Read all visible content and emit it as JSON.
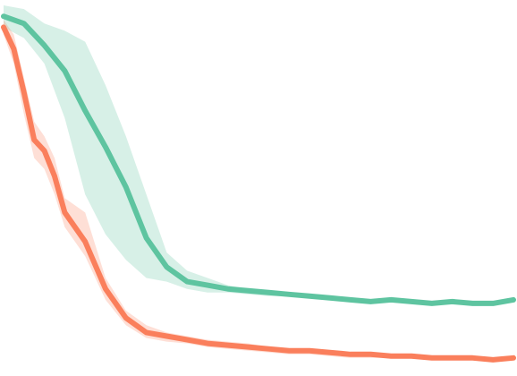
{
  "chart_data": {
    "type": "line",
    "title": "",
    "xlabel": "",
    "ylabel": "",
    "grid": false,
    "legend": "none",
    "xlim": [
      0,
      100
    ],
    "ylim": [
      0,
      1
    ],
    "series": [
      {
        "color": "#5ec4a0",
        "band_color": "#5ec4a0",
        "band_opacity": 0.25,
        "x": [
          0,
          4,
          8,
          12,
          16,
          20,
          24,
          28,
          32,
          36,
          40,
          44,
          48,
          52,
          56,
          60,
          64,
          68,
          72,
          76,
          80,
          84,
          88,
          92,
          96,
          100
        ],
        "y": [
          0.97,
          0.95,
          0.89,
          0.82,
          0.71,
          0.61,
          0.5,
          0.36,
          0.28,
          0.24,
          0.23,
          0.22,
          0.215,
          0.21,
          0.205,
          0.2,
          0.195,
          0.19,
          0.185,
          0.19,
          0.185,
          0.18,
          0.185,
          0.18,
          0.18,
          0.19
        ],
        "upper": [
          1.0,
          0.99,
          0.95,
          0.93,
          0.9,
          0.78,
          0.64,
          0.48,
          0.32,
          0.27,
          0.25,
          0.23,
          0.22,
          0.215,
          0.21,
          0.205,
          0.2,
          0.195,
          0.19,
          0.195,
          0.19,
          0.185,
          0.19,
          0.185,
          0.185,
          0.195
        ],
        "lower": [
          0.94,
          0.91,
          0.84,
          0.69,
          0.48,
          0.37,
          0.3,
          0.25,
          0.24,
          0.22,
          0.21,
          0.21,
          0.205,
          0.2,
          0.2,
          0.195,
          0.19,
          0.185,
          0.18,
          0.185,
          0.18,
          0.175,
          0.18,
          0.175,
          0.175,
          0.185
        ]
      },
      {
        "color": "#fa7f5c",
        "band_color": "#fa7f5c",
        "band_opacity": 0.25,
        "x": [
          0,
          2,
          4,
          6,
          8,
          10,
          12,
          16,
          20,
          24,
          28,
          32,
          36,
          40,
          44,
          48,
          52,
          56,
          60,
          64,
          68,
          72,
          76,
          80,
          84,
          88,
          92,
          96,
          100
        ],
        "y": [
          0.94,
          0.88,
          0.76,
          0.63,
          0.6,
          0.53,
          0.43,
          0.35,
          0.22,
          0.14,
          0.1,
          0.09,
          0.08,
          0.07,
          0.065,
          0.06,
          0.055,
          0.05,
          0.05,
          0.045,
          0.04,
          0.04,
          0.035,
          0.035,
          0.03,
          0.03,
          0.03,
          0.025,
          0.03
        ],
        "upper": [
          0.96,
          0.92,
          0.8,
          0.68,
          0.64,
          0.58,
          0.47,
          0.43,
          0.25,
          0.16,
          0.12,
          0.1,
          0.09,
          0.08,
          0.075,
          0.07,
          0.06,
          0.055,
          0.055,
          0.05,
          0.045,
          0.045,
          0.04,
          0.04,
          0.035,
          0.035,
          0.035,
          0.03,
          0.035
        ],
        "lower": [
          0.92,
          0.84,
          0.7,
          0.58,
          0.55,
          0.48,
          0.39,
          0.31,
          0.19,
          0.12,
          0.085,
          0.075,
          0.07,
          0.06,
          0.055,
          0.05,
          0.045,
          0.04,
          0.04,
          0.035,
          0.03,
          0.03,
          0.03,
          0.03,
          0.025,
          0.025,
          0.025,
          0.02,
          0.025
        ]
      }
    ]
  }
}
